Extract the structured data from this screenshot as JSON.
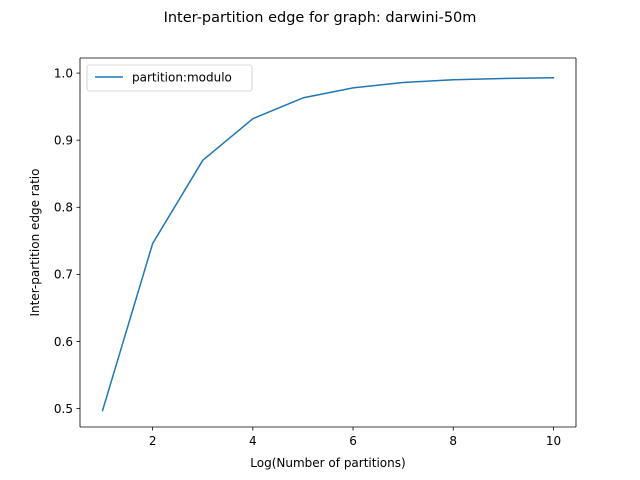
{
  "chart_data": {
    "type": "line",
    "title": "Inter-partition edge for graph: darwini-50m",
    "xlabel": "Log(Number of partitions)",
    "ylabel": "Inter-partition edge ratio",
    "xlim": [
      0.55,
      10.45
    ],
    "ylim": [
      0.4725,
      1.0225
    ],
    "x_ticks": [
      2,
      4,
      6,
      8,
      10
    ],
    "y_ticks": [
      0.5,
      0.6,
      0.7,
      0.8,
      0.9,
      1.0
    ],
    "x_tick_labels": [
      "2",
      "4",
      "6",
      "8",
      "10"
    ],
    "y_tick_labels": [
      "0.5",
      "0.6",
      "0.7",
      "0.8",
      "0.9",
      "1.0"
    ],
    "grid": false,
    "legend_position": "upper-left",
    "series": [
      {
        "name": "partition:modulo",
        "color": "#1f77b4",
        "x": [
          1,
          2,
          3,
          4,
          5,
          6,
          7,
          8,
          9,
          10
        ],
        "values": [
          0.497,
          0.746,
          0.87,
          0.932,
          0.963,
          0.978,
          0.986,
          0.99,
          0.992,
          0.993
        ]
      }
    ]
  }
}
